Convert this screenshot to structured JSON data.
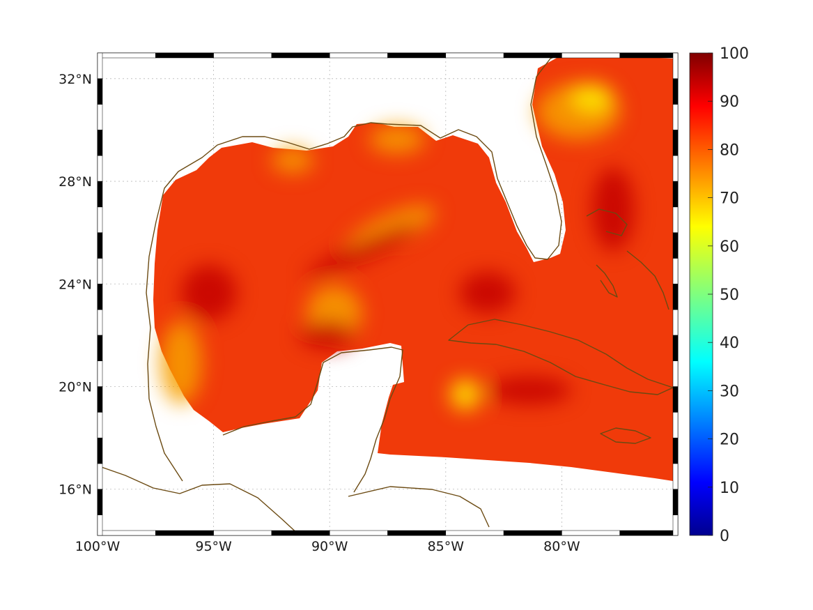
{
  "map": {
    "lon_range": [
      -100,
      -75
    ],
    "lat_range": [
      14.2,
      33
    ],
    "lon_ticks": [
      {
        "value": -100,
        "label": "100°W"
      },
      {
        "value": -95,
        "label": "95°W"
      },
      {
        "value": -90,
        "label": "90°W"
      },
      {
        "value": -85,
        "label": "85°W"
      },
      {
        "value": -80,
        "label": "80°W"
      }
    ],
    "lat_ticks": [
      {
        "value": 16,
        "label": "16°N"
      },
      {
        "value": 20,
        "label": "20°N"
      },
      {
        "value": 24,
        "label": "24°N"
      },
      {
        "value": 28,
        "label": "28°N"
      },
      {
        "value": 32,
        "label": "32°N"
      }
    ],
    "grid": true,
    "colors": {
      "coastline": "#6b4a12",
      "field_base": "#f03a0a",
      "field_dark": "#c40000",
      "field_light": "#f7a000",
      "field_peak": "#fff000"
    }
  },
  "colorbar": {
    "range": [
      0,
      100
    ],
    "ticks": [
      "0",
      "10",
      "20",
      "30",
      "40",
      "50",
      "60",
      "70",
      "80",
      "90",
      "100"
    ],
    "colormap": "jet"
  }
}
